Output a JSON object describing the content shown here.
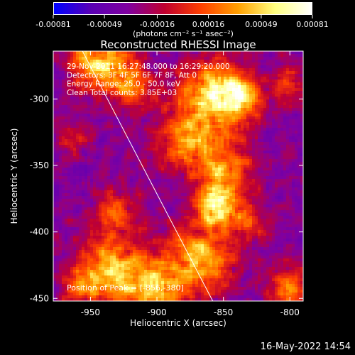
{
  "chart_data": {
    "type": "heatmap",
    "title": "Reconstructed RHESSI Image",
    "xlabel": "Heliocentric X (arcsec)",
    "ylabel": "Heliocentric Y (arcsec)",
    "xlim": [
      -978,
      -790
    ],
    "ylim": [
      -452,
      -264
    ],
    "x_ticks": [
      -950,
      -900,
      -850,
      -800
    ],
    "y_ticks": [
      -300,
      -350,
      -400,
      -450
    ],
    "colorbar": {
      "ticks": [
        "-0.00081",
        "-0.00049",
        "-0.00016",
        "0.00016",
        "0.00049",
        "0.00081"
      ],
      "range": [
        -0.00081,
        0.00081
      ],
      "label": "(photons cm⁻² s⁻¹ asec⁻²)",
      "colors": [
        "#0000ff",
        "#5a00b4",
        "#8000a0",
        "#c00030",
        "#ff4000",
        "#ffa000",
        "#ffff80",
        "#ffffff"
      ]
    },
    "annotations": [
      "29-Nov-2011 16:27:48.000 to 16:29:20.000",
      "Detectors: 3F 4F 5F 6F 7F 8F, Att 0",
      "Energy Range: 25.0 - 50.0 keV",
      "Clean      Total counts: 3.85E+03"
    ],
    "peak_label": "Position of Peak = [-856,-380]",
    "peak": [
      -856,
      -380
    ],
    "hotspots": [
      {
        "x": -942,
        "y": -272,
        "r": 16,
        "v": 0.0007
      },
      {
        "x": -918,
        "y": -292,
        "r": 10,
        "v": 0.0005
      },
      {
        "x": -858,
        "y": -300,
        "r": 20,
        "v": 0.00065
      },
      {
        "x": -842,
        "y": -296,
        "r": 12,
        "v": 0.0006
      },
      {
        "x": -880,
        "y": -332,
        "r": 14,
        "v": 0.0005
      },
      {
        "x": -850,
        "y": -352,
        "r": 15,
        "v": 0.0006
      },
      {
        "x": -856,
        "y": -380,
        "r": 10,
        "v": 0.00081
      },
      {
        "x": -830,
        "y": -392,
        "r": 10,
        "v": 0.0004
      },
      {
        "x": -930,
        "y": -385,
        "r": 12,
        "v": 0.0004
      },
      {
        "x": -935,
        "y": -430,
        "r": 18,
        "v": 0.0007
      },
      {
        "x": -902,
        "y": -442,
        "r": 14,
        "v": 0.0006
      },
      {
        "x": -868,
        "y": -420,
        "r": 18,
        "v": 0.0007
      },
      {
        "x": -800,
        "y": -442,
        "r": 12,
        "v": 0.0005
      },
      {
        "x": -800,
        "y": -290,
        "r": 10,
        "v": 0.00035
      },
      {
        "x": -962,
        "y": -330,
        "r": 8,
        "v": 0.0003
      },
      {
        "x": -960,
        "y": -440,
        "r": 9,
        "v": 0.0003
      }
    ],
    "limb_line": [
      [
        -956,
        -264
      ],
      [
        -858,
        -452
      ]
    ],
    "timestamp": "16-May-2022 14:54"
  }
}
